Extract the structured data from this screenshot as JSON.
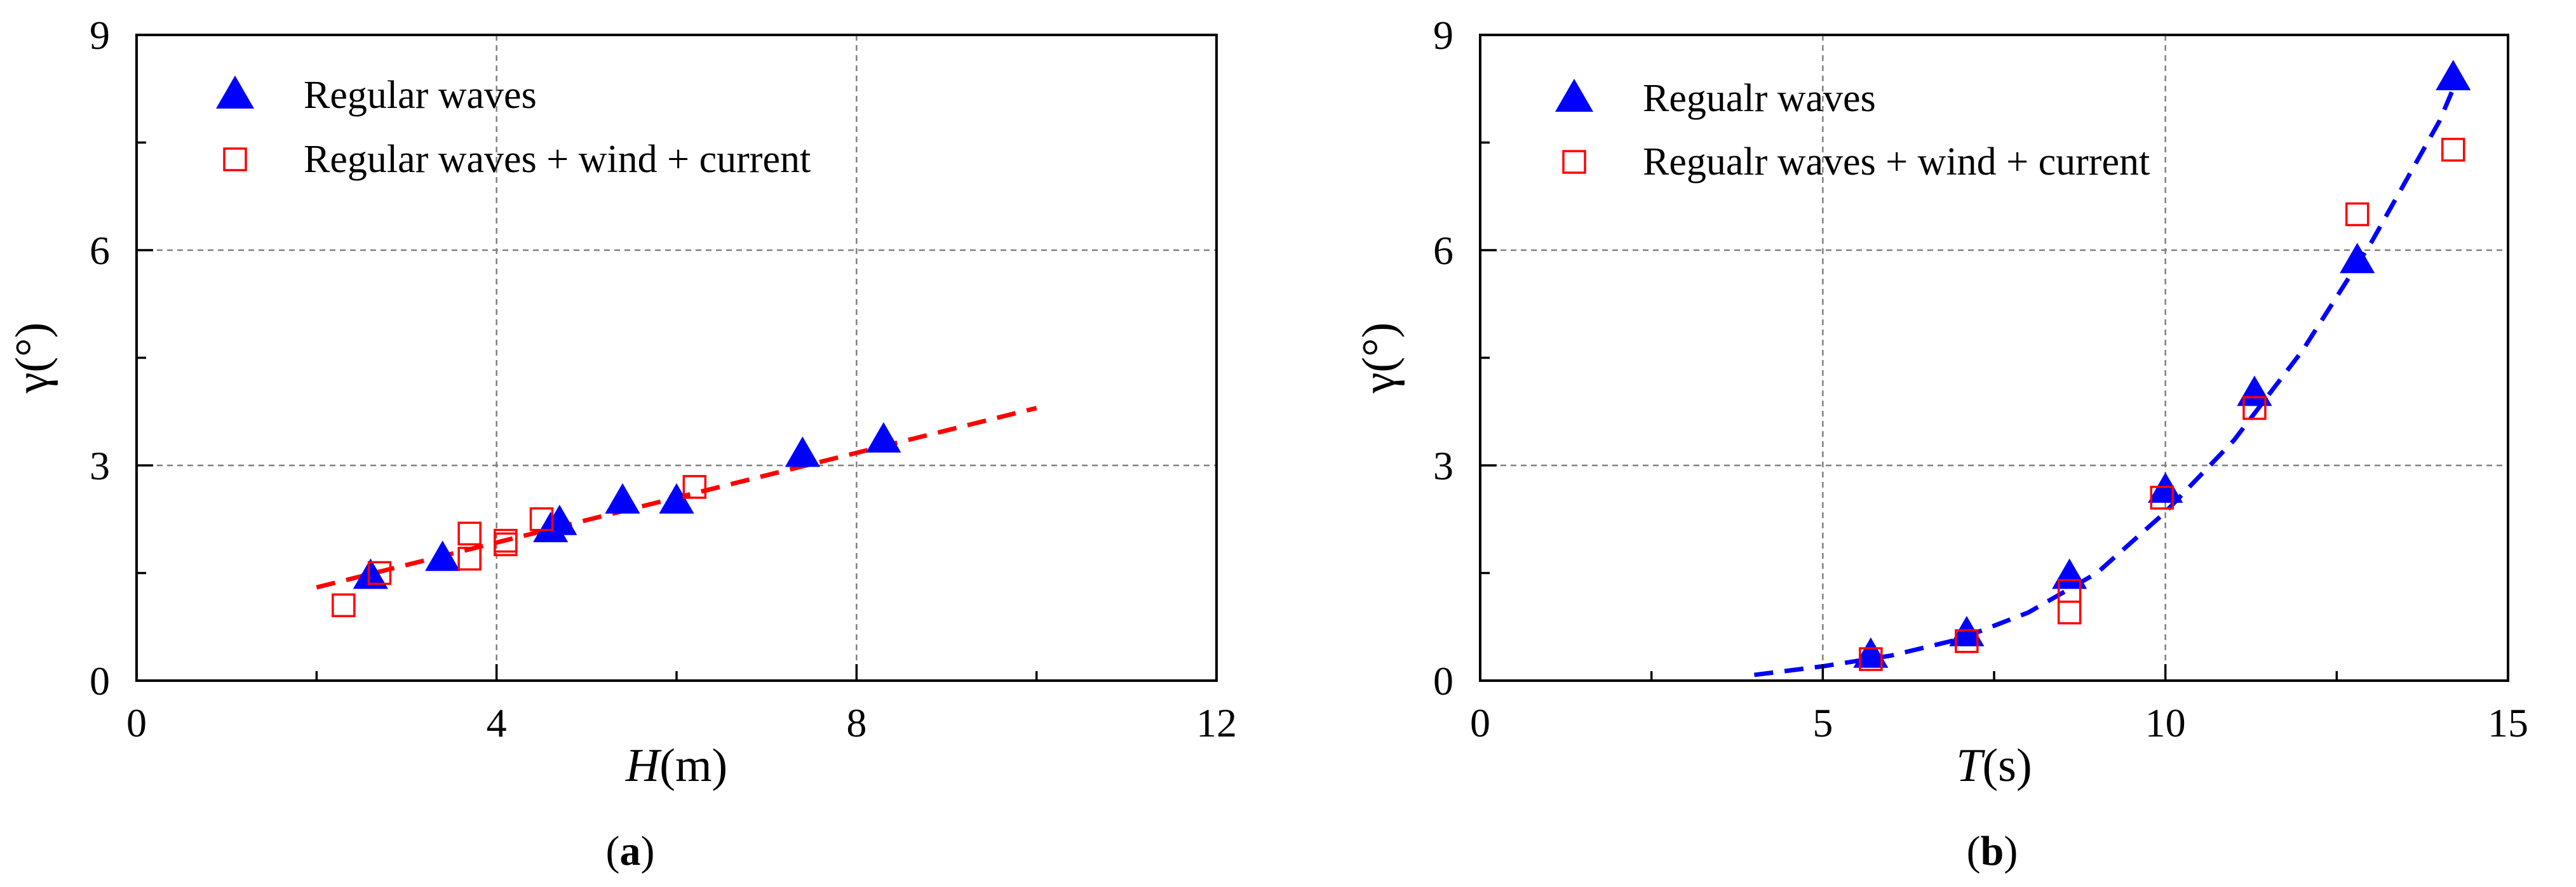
{
  "chart_data": [
    {
      "type": "scatter",
      "panel_label": "a",
      "xlabel_var": "H",
      "xlabel_unit": "(m)",
      "ylabel": "γ(°)",
      "xlim": [
        0,
        12
      ],
      "ylim": [
        0,
        9
      ],
      "xticks": [
        0,
        4,
        8,
        12
      ],
      "yticks": [
        0,
        3,
        6,
        9
      ],
      "grid": true,
      "legend_position": "top-left",
      "series": [
        {
          "name": "Regular waves",
          "marker": "filled-triangle",
          "color": "#0000ff",
          "x": [
            2.6,
            3.4,
            4.6,
            4.7,
            5.4,
            6.0,
            7.4,
            8.3
          ],
          "y": [
            1.45,
            1.7,
            2.1,
            2.2,
            2.5,
            2.5,
            3.15,
            3.35
          ]
        },
        {
          "name": "Regular waves + wind + current",
          "marker": "open-square",
          "color": "#ff0000",
          "x": [
            2.3,
            2.7,
            3.7,
            3.7,
            4.1,
            4.1,
            4.5,
            6.2
          ],
          "y": [
            1.05,
            1.5,
            2.05,
            1.7,
            1.9,
            1.95,
            2.25,
            2.7
          ]
        }
      ],
      "fit": {
        "color": "#ff0000",
        "x_start": 2.0,
        "x_end": 10.0,
        "y_start": 1.3,
        "y_end": 3.8
      }
    },
    {
      "type": "scatter",
      "panel_label": "b",
      "xlabel_var": "T",
      "xlabel_unit": "(s)",
      "ylabel": "γ(°)",
      "xlim": [
        0,
        15
      ],
      "ylim": [
        0,
        9
      ],
      "xticks": [
        0,
        5,
        10,
        15
      ],
      "yticks": [
        0,
        3,
        6,
        9
      ],
      "grid": true,
      "legend_position": "top-left",
      "series": [
        {
          "name": "Regualr waves",
          "marker": "filled-triangle",
          "color": "#0000ff",
          "x": [
            5.7,
            7.1,
            8.6,
            10.0,
            11.3,
            12.8,
            14.2
          ],
          "y": [
            0.35,
            0.65,
            1.45,
            2.65,
            4.0,
            5.85,
            8.4
          ]
        },
        {
          "name": "Regualr waves + wind + current",
          "marker": "open-square",
          "color": "#ff0000",
          "x": [
            5.7,
            7.1,
            8.6,
            8.6,
            9.95,
            11.3,
            12.8,
            14.2
          ],
          "y": [
            0.3,
            0.55,
            0.95,
            1.25,
            2.55,
            3.8,
            6.5,
            7.4
          ]
        }
      ],
      "fit": {
        "color": "#0000ff",
        "x": [
          4.0,
          5.0,
          6.0,
          7.0,
          8.0,
          9.0,
          10.0,
          11.0,
          12.0,
          13.0,
          14.0,
          14.2
        ],
        "y": [
          0.08,
          0.2,
          0.35,
          0.58,
          0.95,
          1.5,
          2.35,
          3.35,
          4.6,
          6.1,
          7.8,
          8.25
        ]
      }
    }
  ]
}
